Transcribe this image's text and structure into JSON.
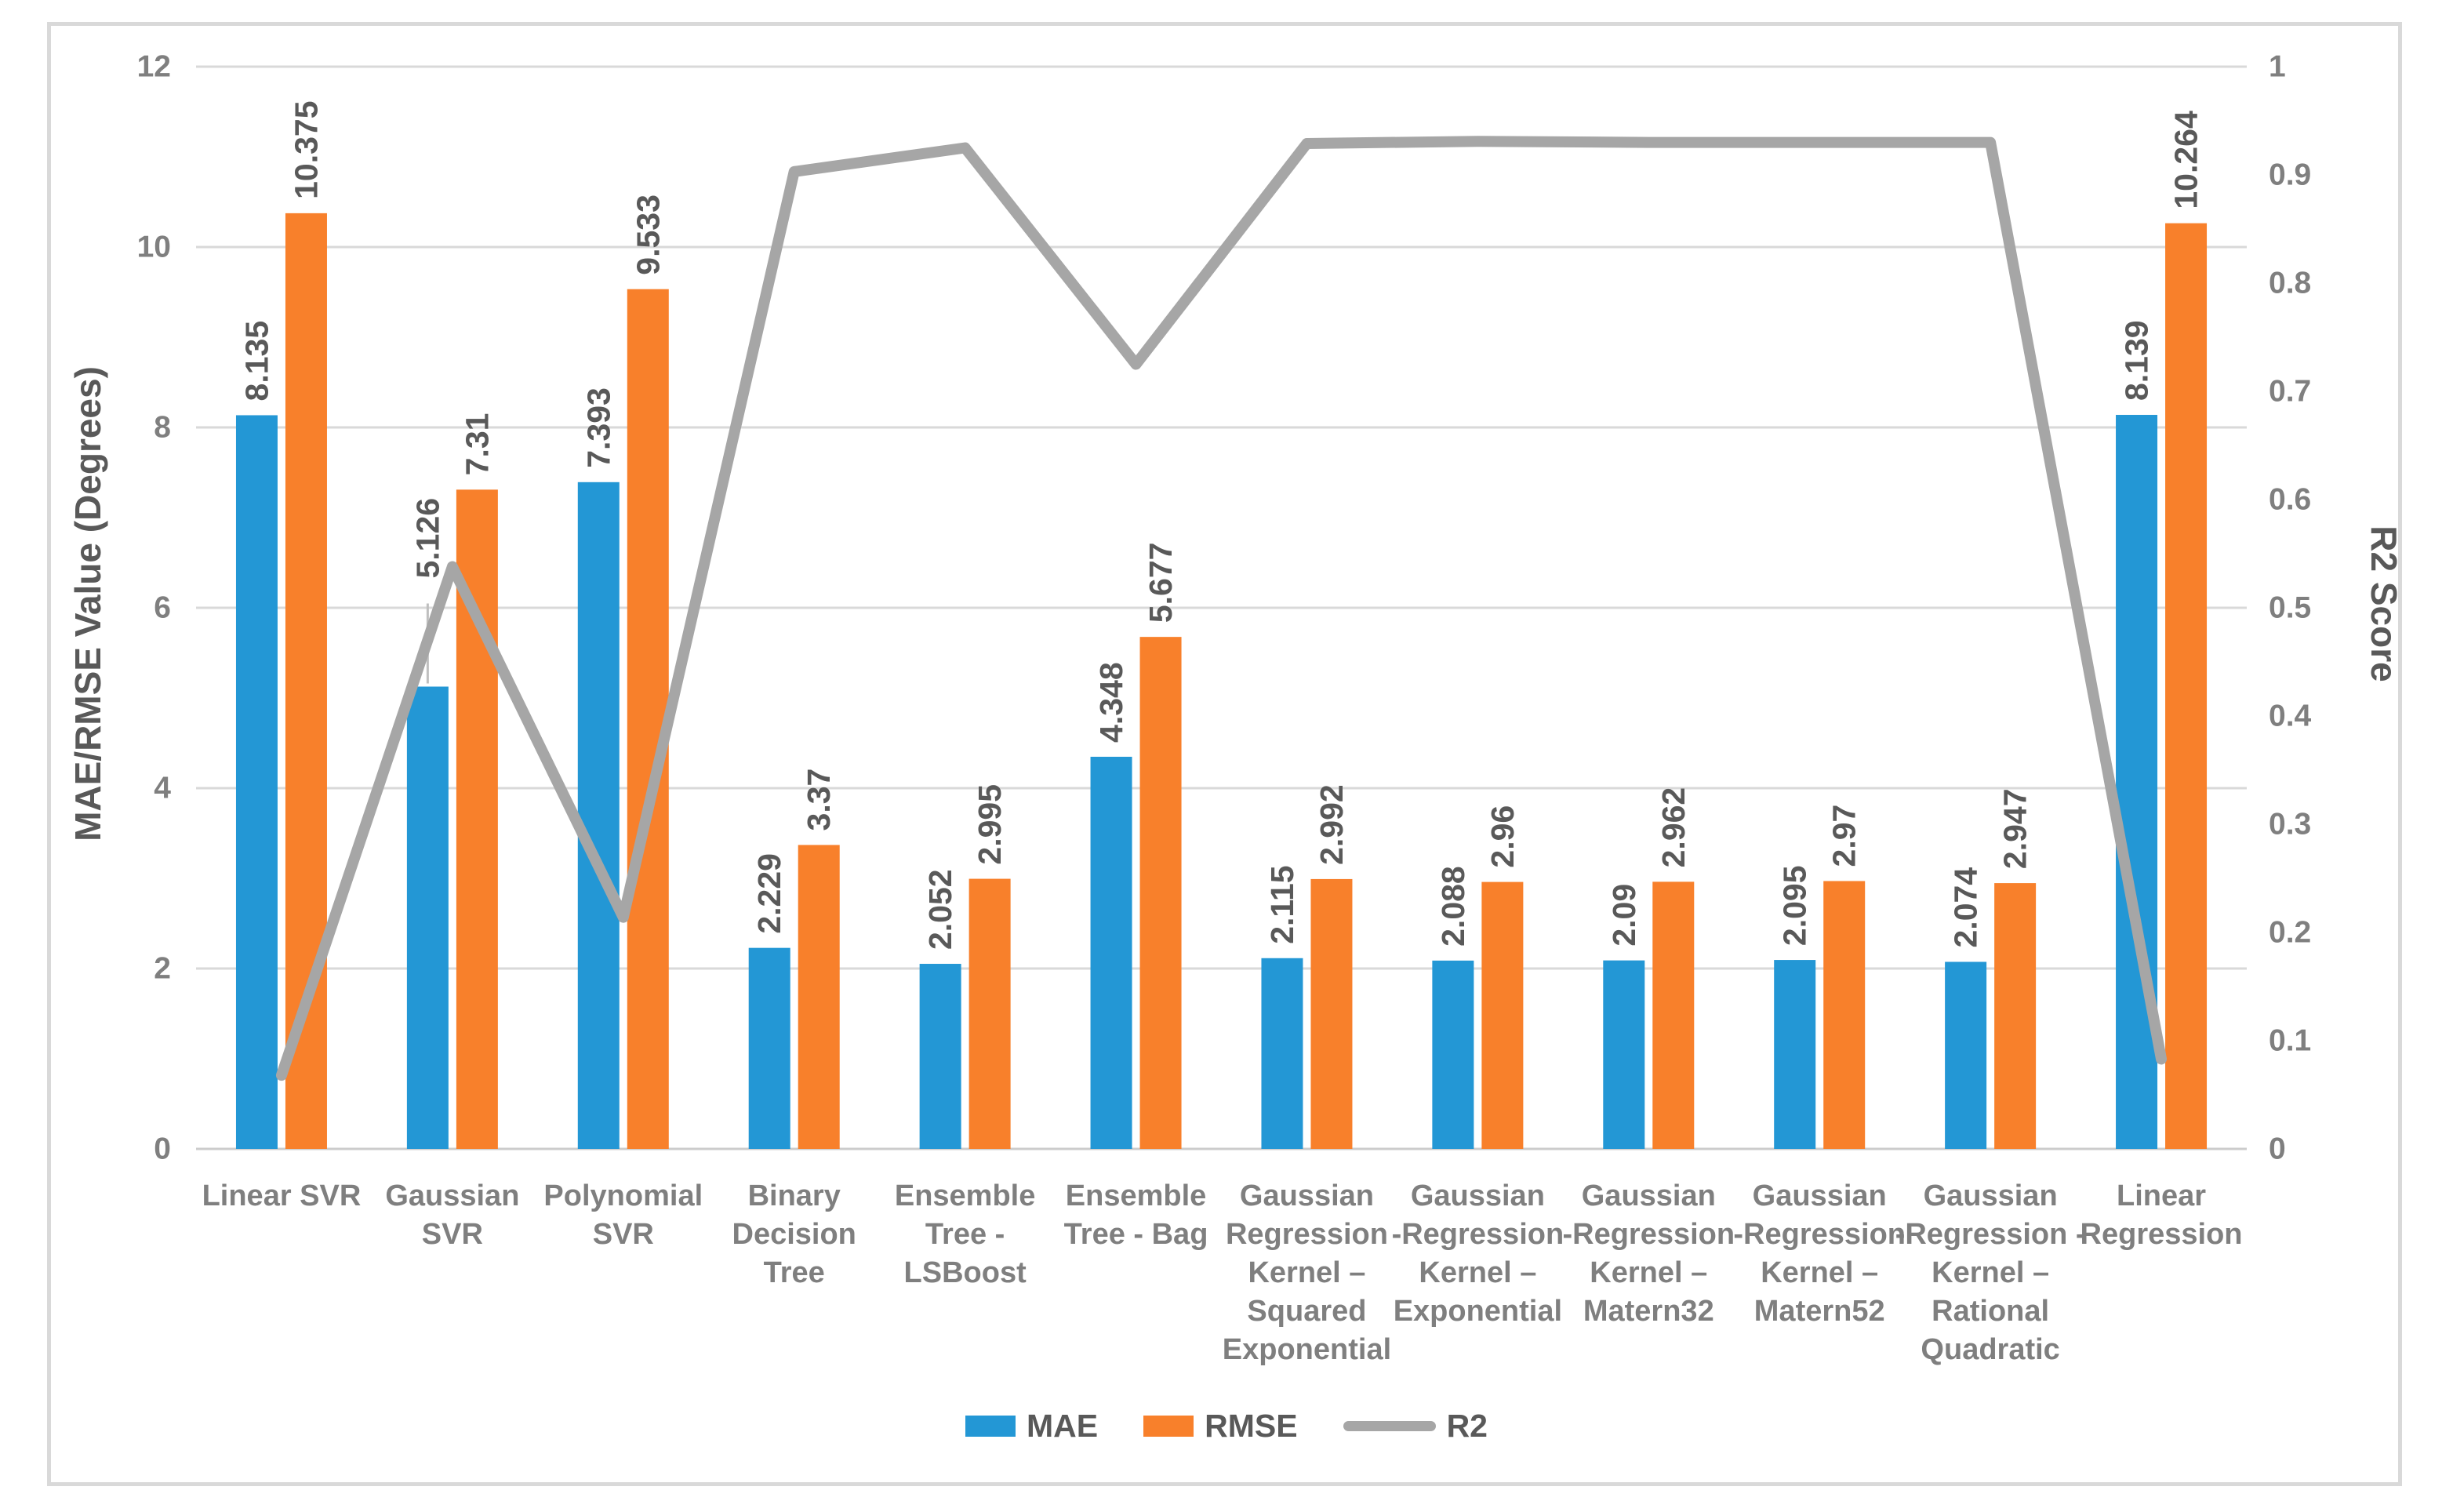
{
  "chart_data": {
    "type": "bar+line",
    "title": "",
    "categories": [
      {
        "name": "Linear SVR",
        "lines": [
          "Linear SVR"
        ]
      },
      {
        "name": "Gaussian SVR",
        "lines": [
          "Gaussian",
          "SVR"
        ]
      },
      {
        "name": "Polynomial SVR",
        "lines": [
          "Polynomial",
          "SVR"
        ]
      },
      {
        "name": "Binary Decision Tree",
        "lines": [
          "Binary",
          "Decision",
          "Tree"
        ]
      },
      {
        "name": "Ensemble Tree - LSBoost",
        "lines": [
          "Ensemble",
          "Tree -",
          "LSBoost"
        ]
      },
      {
        "name": "Ensemble Tree - Bag",
        "lines": [
          "Ensemble",
          "Tree - Bag"
        ]
      },
      {
        "name": "Gaussian Regression Kernel – Squared Exponential",
        "lines": [
          "Gaussian",
          "Regression",
          "Kernel –",
          "Squared",
          "Exponential"
        ]
      },
      {
        "name": "Gaussian Regression Kernel – Exponential",
        "lines": [
          "Gaussian",
          "-Regression",
          "Kernel –",
          "Exponential"
        ]
      },
      {
        "name": "Gaussian Regression Kernel – Matern32",
        "lines": [
          "Gaussian",
          "-Regression",
          "Kernel –",
          "Matern32"
        ]
      },
      {
        "name": "Gaussian Regression Kernel – Matern52",
        "lines": [
          "Gaussian",
          "-Regression",
          "Kernel –",
          "Matern52"
        ]
      },
      {
        "name": "Gaussian Regression Kernel – Rational Quadratic",
        "lines": [
          "Gaussian",
          "-Regression -",
          "Kernel –",
          "Rational",
          "Quadratic"
        ]
      },
      {
        "name": "Linear Regression",
        "lines": [
          "Linear",
          "Regression"
        ]
      }
    ],
    "series": [
      {
        "name": "MAE",
        "type": "bar",
        "axis": "left",
        "color": "#2397d5",
        "values": [
          8.135,
          5.126,
          7.393,
          2.229,
          2.052,
          4.348,
          2.115,
          2.088,
          2.09,
          2.095,
          2.074,
          8.139
        ],
        "labels": [
          "8.135",
          "5.126",
          "7.393",
          "2.229",
          "2.052",
          "4.348",
          "2.115",
          "2.088",
          "2.09",
          "2.095",
          "2.074",
          "8.139"
        ]
      },
      {
        "name": "RMSE",
        "type": "bar",
        "axis": "left",
        "color": "#f8802b",
        "values": [
          10.375,
          7.31,
          9.533,
          3.37,
          2.995,
          5.677,
          2.992,
          2.96,
          2.962,
          2.97,
          2.947,
          10.264
        ],
        "labels": [
          "10.375",
          "7.31",
          "9.533",
          "3.37",
          "2.995",
          "5.677",
          "2.992",
          "2.96",
          "2.962",
          "2.97",
          "2.947",
          "10.264"
        ]
      },
      {
        "name": "R2",
        "type": "line",
        "axis": "right",
        "color": "#a6a6a6",
        "values": [
          0.068,
          0.538,
          0.214,
          0.903,
          0.925,
          0.725,
          0.929,
          0.931,
          0.93,
          0.93,
          0.93,
          0.083
        ]
      }
    ],
    "left_axis": {
      "title": "MAE/RMSE Value (Degrees)",
      "min": 0,
      "max": 12,
      "step": 2,
      "tick_labels": [
        "0",
        "2",
        "4",
        "6",
        "8",
        "10",
        "12"
      ]
    },
    "right_axis": {
      "title": "R2 Score",
      "min": 0,
      "max": 1,
      "step": 0.1,
      "tick_labels": [
        "0",
        "0.1",
        "0.2",
        "0.3",
        "0.4",
        "0.5",
        "0.6",
        "0.7",
        "0.8",
        "0.9",
        "1"
      ]
    },
    "grid": true,
    "legend_position": "bottom",
    "annotations": {
      "label_with_leader": {
        "series": "MAE",
        "category": "Gaussian SVR",
        "label": "5.126"
      }
    }
  },
  "legend": {
    "items": [
      {
        "label": "MAE",
        "color": "#2397d5",
        "marker": "rect"
      },
      {
        "label": "RMSE",
        "color": "#f8802b",
        "marker": "rect"
      },
      {
        "label": "R2",
        "color": "#a6a6a6",
        "marker": "line"
      }
    ]
  },
  "colors": {
    "mae_bar": "#2397d5",
    "rmse_bar": "#f8802b",
    "r2_line": "#a6a6a6",
    "gridline": "#d9d9d9",
    "frame_border": "#d9d9d9",
    "data_label_text": "#595959",
    "tick_text": "#7f7f7f",
    "leader_line": "#bfbfbf"
  }
}
